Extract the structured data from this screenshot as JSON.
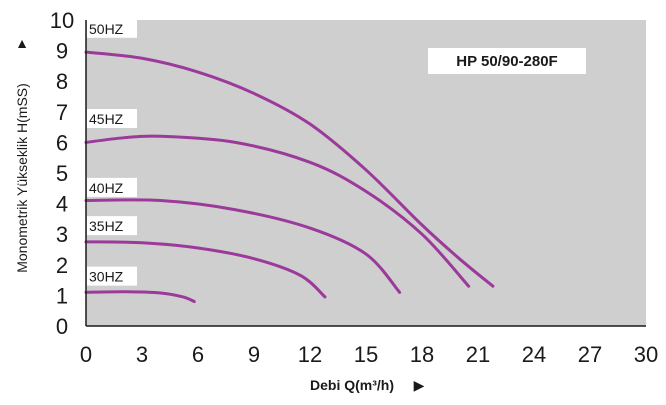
{
  "chart_data": {
    "type": "line",
    "model": "HP 50/90-280F",
    "xlabel": "Debi Q(m³/h)",
    "ylabel": "Monometrik Yükseklik H(mSS)",
    "xlim": [
      0,
      30
    ],
    "ylim": [
      0,
      10
    ],
    "x_ticks": [
      "0",
      "3",
      "6",
      "9",
      "12",
      "15",
      "18",
      "21",
      "24",
      "27",
      "30"
    ],
    "y_ticks": [
      "0",
      "1",
      "2",
      "3",
      "4",
      "5",
      "6",
      "7",
      "8",
      "9",
      "10"
    ],
    "grid": true,
    "operating_region": {
      "points": [
        [
          0,
          8.95
        ],
        [
          0,
          0.75
        ],
        [
          5.8,
          0.75
        ],
        [
          21.8,
          1.3
        ]
      ]
    },
    "series": [
      {
        "name": "50HZ",
        "points": [
          [
            0,
            8.95
          ],
          [
            3,
            8.75
          ],
          [
            6,
            8.3
          ],
          [
            9,
            7.6
          ],
          [
            12,
            6.6
          ],
          [
            15,
            5.1
          ],
          [
            18,
            3.3
          ],
          [
            20,
            2.2
          ],
          [
            21.8,
            1.3
          ]
        ]
      },
      {
        "name": "45HZ",
        "points": [
          [
            0,
            6.0
          ],
          [
            2,
            6.15
          ],
          [
            4,
            6.2
          ],
          [
            8,
            6.0
          ],
          [
            12,
            5.35
          ],
          [
            15,
            4.4
          ],
          [
            18,
            3.0
          ],
          [
            20.5,
            1.3
          ]
        ]
      },
      {
        "name": "40HZ",
        "points": [
          [
            0,
            4.1
          ],
          [
            4,
            4.1
          ],
          [
            8,
            3.8
          ],
          [
            12,
            3.2
          ],
          [
            15,
            2.35
          ],
          [
            16.8,
            1.1
          ]
        ]
      },
      {
        "name": "35HZ",
        "points": [
          [
            0,
            2.75
          ],
          [
            3,
            2.72
          ],
          [
            6,
            2.55
          ],
          [
            9,
            2.2
          ],
          [
            11.5,
            1.65
          ],
          [
            12.8,
            0.95
          ]
        ]
      },
      {
        "name": "30HZ",
        "points": [
          [
            0,
            1.1
          ],
          [
            2,
            1.12
          ],
          [
            4,
            1.08
          ],
          [
            5.2,
            0.95
          ],
          [
            5.8,
            0.8
          ]
        ]
      }
    ],
    "series_label_anchor_y": [
      9.55,
      6.6,
      4.35,
      3.1,
      1.45
    ],
    "colors": {
      "curve": "#9b3a9a",
      "region_fill": "#cfcfcf",
      "grid": "#ffffff",
      "axis": "#1a1a1a",
      "text": "#1a1a1a",
      "label_box": "#ffffff"
    },
    "axis_arrow": "▲",
    "xlabel_arrow": "▶"
  }
}
